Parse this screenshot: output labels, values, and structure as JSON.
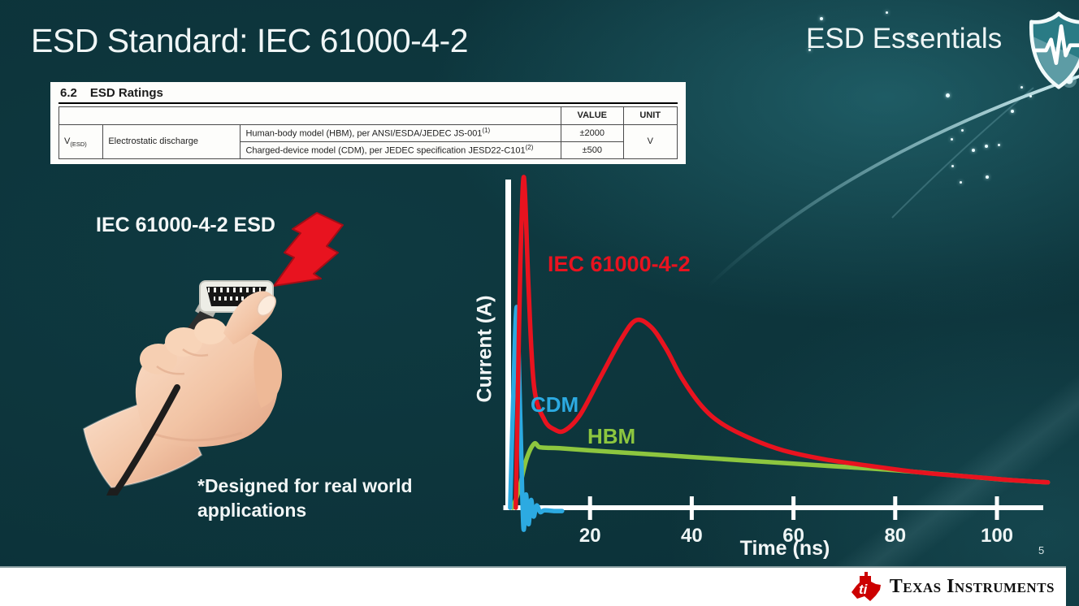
{
  "slide": {
    "title": "ESD Standard: IEC 61000-4-2",
    "series_brand": "ESD Essentials",
    "illustration_caption": "IEC 61000-4-2 ESD",
    "footnote": "*Designed for real world applications",
    "page_number": "5"
  },
  "datasheet_table": {
    "section_number": "6.2",
    "section_title": "ESD Ratings",
    "col_headers": {
      "value": "VALUE",
      "unit": "UNIT"
    },
    "param_symbol": "V",
    "param_symbol_sub": "(ESD)",
    "param_name": "Electrostatic discharge",
    "rows": [
      {
        "description": "Human-body model (HBM), per ANSI/ESDA/JEDEC JS-001",
        "footnote_ref": "(1)",
        "value": "±2000"
      },
      {
        "description": "Charged-device model (CDM), per JEDEC specification JESD22-C101",
        "footnote_ref": "(2)",
        "value": "±500"
      }
    ],
    "unit": "V"
  },
  "chart_data": {
    "type": "line",
    "title": "",
    "xlabel": "Time (ns)",
    "ylabel": "Current (A)",
    "x_ticks": [
      20,
      40,
      60,
      80,
      100
    ],
    "xlim": [
      0,
      113
    ],
    "ylim": [
      -1.5,
      16
    ],
    "grid": false,
    "legend_position": "inline-labels",
    "note": "y-axis has no numeric labels; amplitudes are relative, IEC peak normalized to ~15 A",
    "series": [
      {
        "name": "IEC 61000-4-2",
        "color": "#e8131f",
        "points": [
          [
            5.4,
            0
          ],
          [
            5.8,
            5
          ],
          [
            6.3,
            11
          ],
          [
            7,
            15
          ],
          [
            7.9,
            10
          ],
          [
            9,
            5.5
          ],
          [
            11,
            4.0
          ],
          [
            13,
            3.55
          ],
          [
            15,
            3.5
          ],
          [
            18,
            4.2
          ],
          [
            22,
            5.9
          ],
          [
            26,
            7.6
          ],
          [
            29,
            8.5
          ],
          [
            32,
            8.2
          ],
          [
            35,
            7.2
          ],
          [
            38,
            5.9
          ],
          [
            42,
            4.6
          ],
          [
            46,
            3.8
          ],
          [
            52,
            3.1
          ],
          [
            58,
            2.6
          ],
          [
            66,
            2.2
          ],
          [
            75,
            1.9
          ],
          [
            85,
            1.6
          ],
          [
            95,
            1.4
          ],
          [
            103,
            1.25
          ],
          [
            110,
            1.15
          ]
        ]
      },
      {
        "name": "CDM",
        "color": "#2caae1",
        "points": [
          [
            4.3,
            0
          ],
          [
            4.9,
            5
          ],
          [
            5.6,
            9.1
          ],
          [
            6.3,
            4
          ],
          [
            6.9,
            -0.9
          ],
          [
            7.4,
            0.6
          ],
          [
            7.9,
            -0.75
          ],
          [
            8.4,
            0.35
          ],
          [
            8.9,
            -0.4
          ],
          [
            9.5,
            0.1
          ],
          [
            10.2,
            -0.2
          ],
          [
            11,
            -0.12
          ],
          [
            13,
            -0.15
          ],
          [
            14.5,
            -0.15
          ]
        ]
      },
      {
        "name": "HBM",
        "color": "#8dc63f",
        "points": [
          [
            4.8,
            0
          ],
          [
            6,
            0.8
          ],
          [
            7.5,
            2.2
          ],
          [
            9,
            2.9
          ],
          [
            10,
            2.75
          ],
          [
            11.5,
            2.72
          ],
          [
            14,
            2.7
          ],
          [
            20,
            2.6
          ],
          [
            30,
            2.45
          ],
          [
            40,
            2.3
          ],
          [
            50,
            2.15
          ],
          [
            60,
            2.0
          ],
          [
            70,
            1.85
          ],
          [
            80,
            1.7
          ],
          [
            90,
            1.5
          ],
          [
            100,
            1.3
          ],
          [
            106,
            1.2
          ],
          [
            110,
            1.15
          ]
        ]
      }
    ]
  },
  "footer": {
    "brand": "Texas Instruments",
    "logo_text": "ti"
  },
  "icons": {
    "brand_shield": "shield-pulse-icon",
    "esd_strike": "lightning-bolt-icon",
    "ti_bug": "ti-texas-logo-icon"
  },
  "colors": {
    "background": "#0d383e",
    "accent_red": "#e8131f",
    "accent_blue": "#2caae1",
    "accent_green": "#8dc63f",
    "axis": "#ffffff",
    "footer_bg": "#ffffff"
  }
}
